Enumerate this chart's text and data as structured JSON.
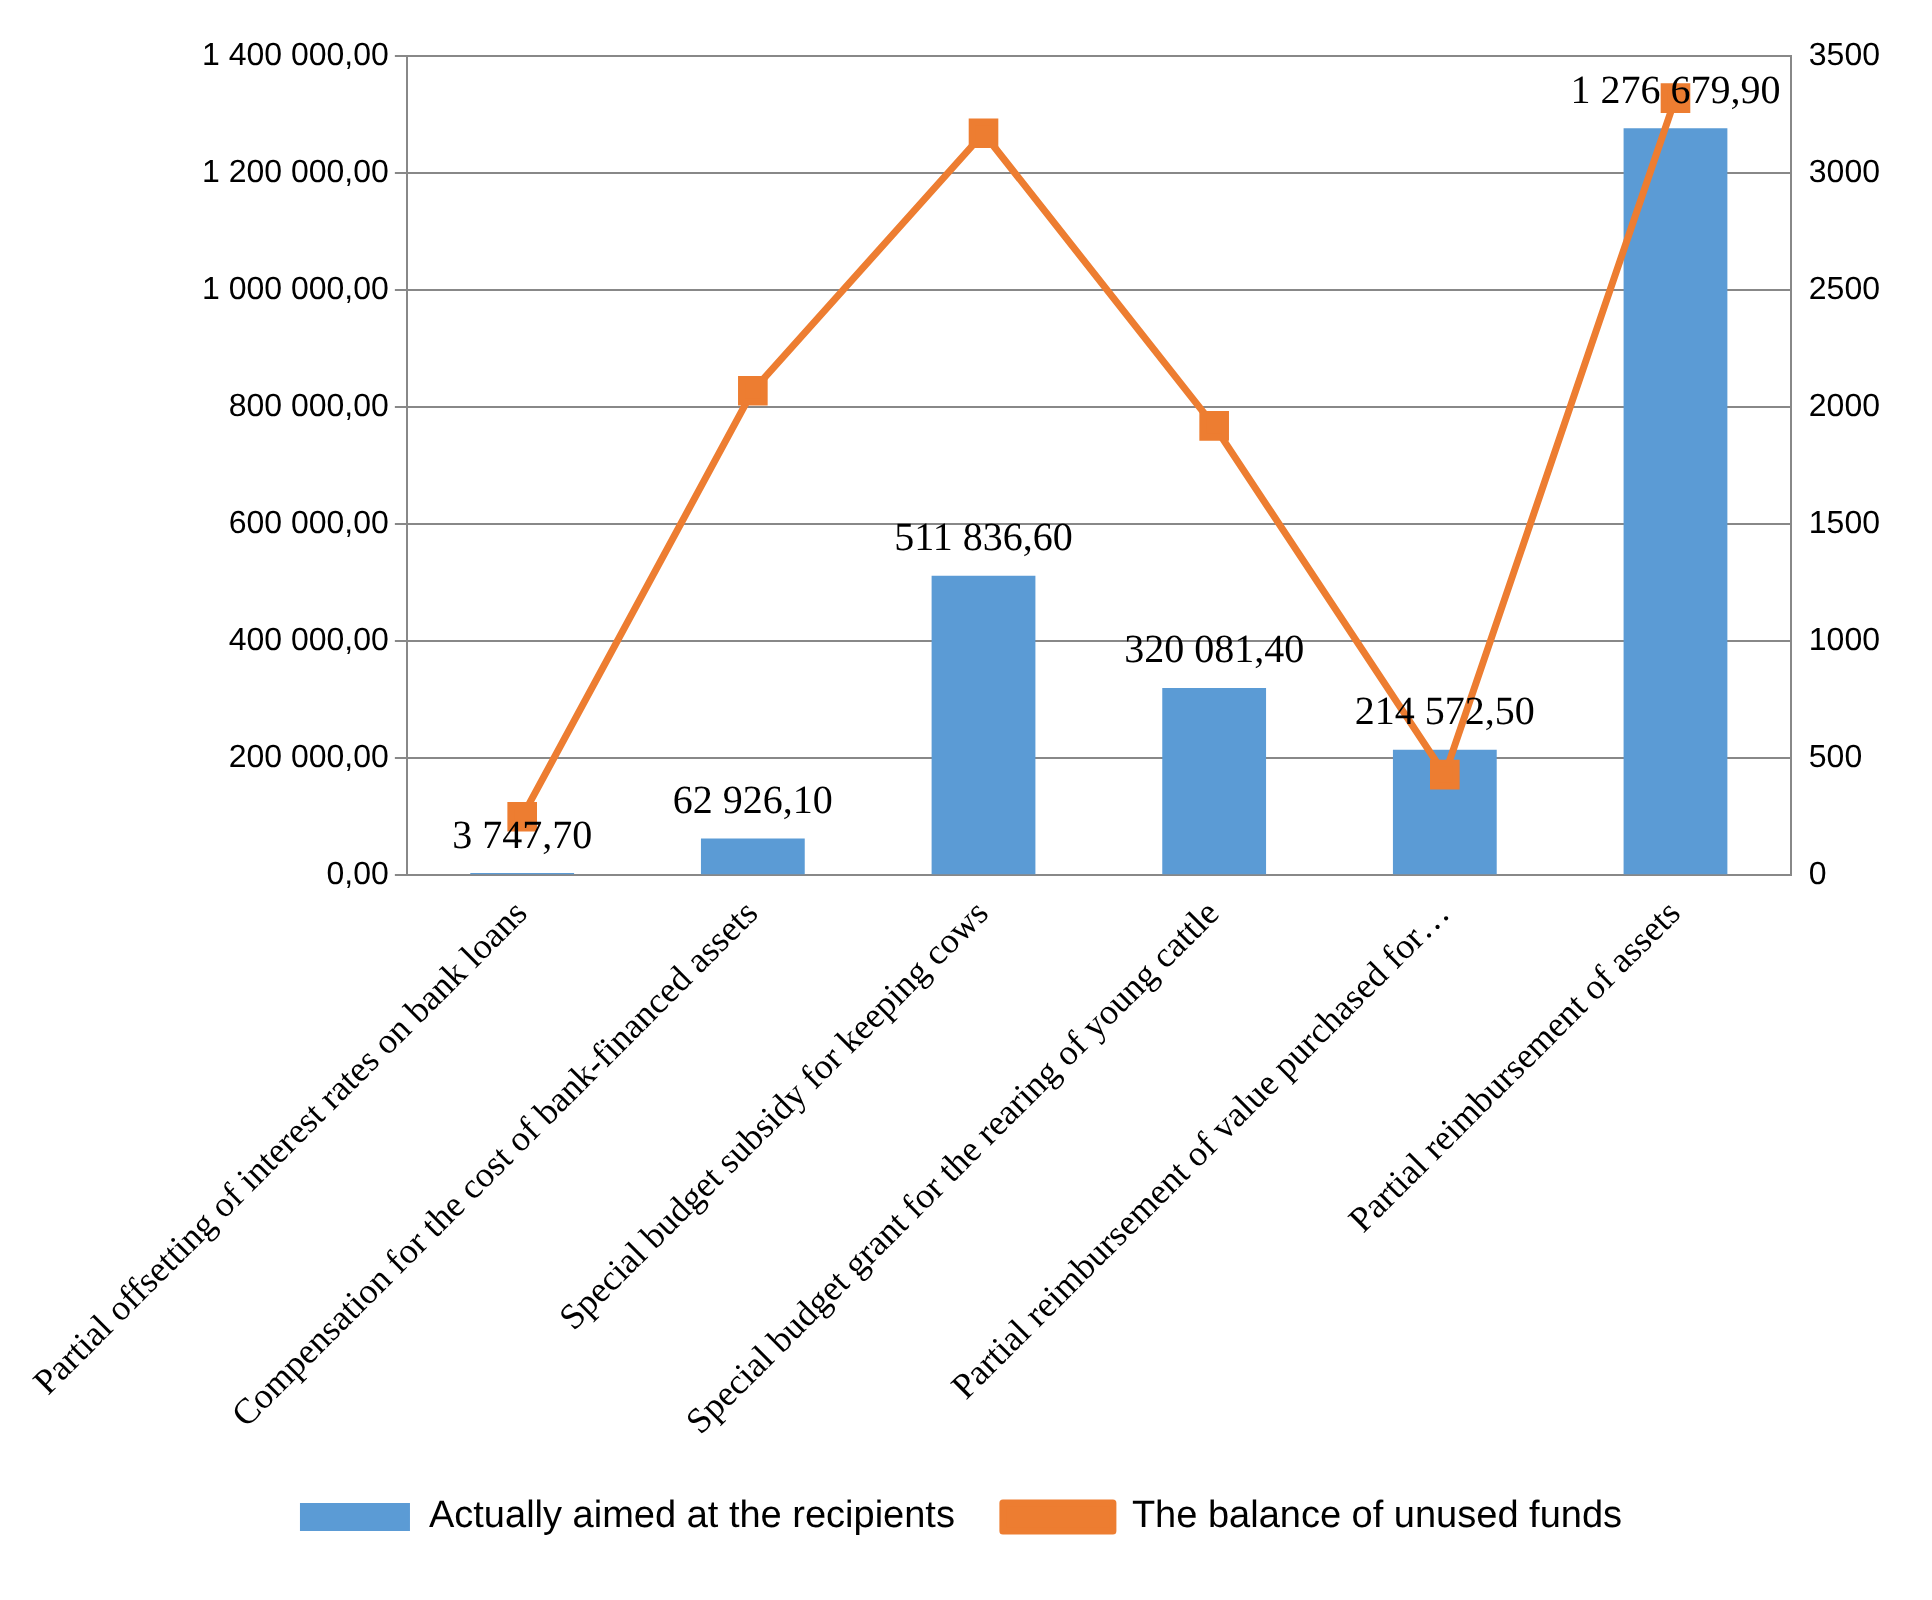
{
  "chart_data": {
    "type": "bar",
    "categories": [
      "Partial offsetting of interest rates on bank loans",
      "Compensation for the cost of bank-financed assets",
      "Special budget subsidy for keeping cows",
      "Special budget grant for the rearing of young cattle",
      "Partial reimbursement of value purchased for…",
      "Partial reimbursement of assets"
    ],
    "series": [
      {
        "name": "Actually aimed at the recipients",
        "color": "#5b9bd5",
        "values": [
          3747.7,
          62926.1,
          511836.6,
          320081.4,
          214572.5,
          1276679.9
        ],
        "value_labels": [
          "3 747,70",
          "62 926,10",
          "511 836,60",
          "320 081,40",
          "214 572,50",
          "1 276 679,90"
        ]
      },
      {
        "name": "The balance of unused funds",
        "type": "line",
        "axis": "y2",
        "color": "#ed7d31",
        "marker": "square",
        "values": [
          250,
          2070,
          3170,
          1920,
          430,
          3320
        ]
      }
    ],
    "ylim": [
      0,
      1400000
    ],
    "yticks": [
      {
        "value": 0,
        "label": "0,00"
      },
      {
        "value": 200000,
        "label": "200 000,00"
      },
      {
        "value": 400000,
        "label": "400 000,00"
      },
      {
        "value": 600000,
        "label": "600 000,00"
      },
      {
        "value": 800000,
        "label": "800 000,00"
      },
      {
        "value": 1000000,
        "label": "1 000 000,00"
      },
      {
        "value": 1200000,
        "label": "1 200 000,00"
      },
      {
        "value": 1400000,
        "label": "1 400 000,00"
      }
    ],
    "y2lim": [
      0,
      3500
    ],
    "y2ticks": [
      0,
      500,
      1000,
      1500,
      2000,
      2500,
      3000,
      3500
    ],
    "grid": "y",
    "legend": "bottom"
  }
}
